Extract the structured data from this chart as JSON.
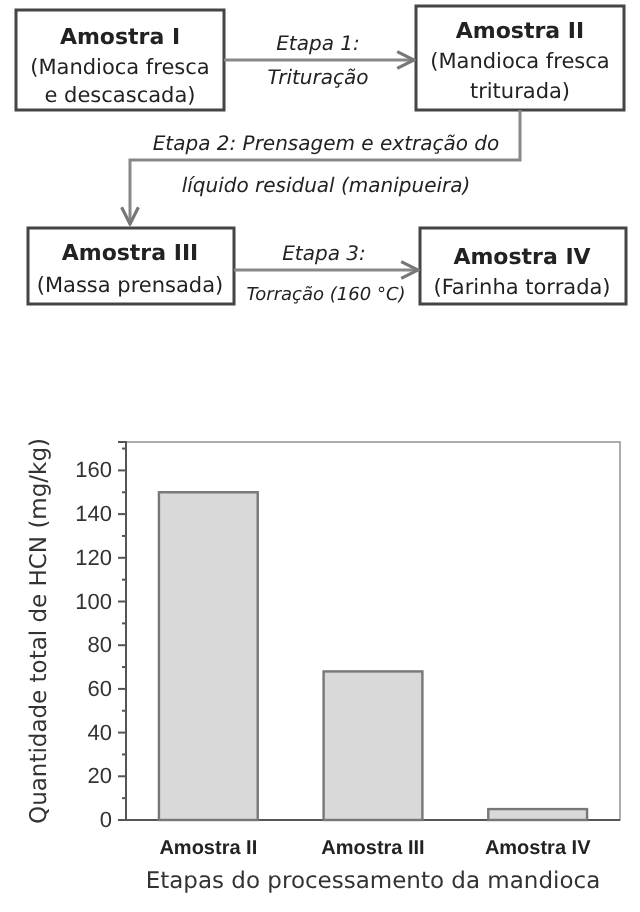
{
  "chart_data": [
    {
      "type": "other",
      "annotations": [
        "Amostra I",
        "(Mandioca fresca",
        "e descascada)",
        "Etapa 1:",
        "Trituração",
        "Amostra II",
        "(Mandioca fresca",
        "triturada)",
        "Etapa 2: Prensagem e extração do",
        "líquido residual (manipueira)",
        "Amostra III",
        "(Massa prensada)",
        "Etapa 3:",
        "Torração (160 °C)",
        "Amostra IV",
        "(Farinha torrada)"
      ]
    },
    {
      "type": "bar",
      "categories": [
        "Amostra II",
        "Amostra III",
        "Amostra IV"
      ],
      "values": [
        150,
        68,
        5
      ],
      "color": "#d9d9d9",
      "ylim": [
        0,
        173
      ],
      "yticks": [
        0,
        {
          "value": 10,
          "label": null
        },
        20,
        {
          "value": 30,
          "label": null
        },
        40,
        {
          "value": 50,
          "label": null
        },
        60,
        {
          "value": 70,
          "label": null
        },
        80,
        {
          "value": 90,
          "label": null
        },
        100,
        {
          "value": 110,
          "label": null
        },
        120,
        {
          "value": 130,
          "label": null
        },
        140,
        {
          "value": 150,
          "label": null
        },
        160,
        {
          "value": 170,
          "label": null
        }
      ],
      "xlabel": "Etapas do processamento da mandioca",
      "ylabel": "Quantidade total de HCN (mg/kg)"
    }
  ]
}
